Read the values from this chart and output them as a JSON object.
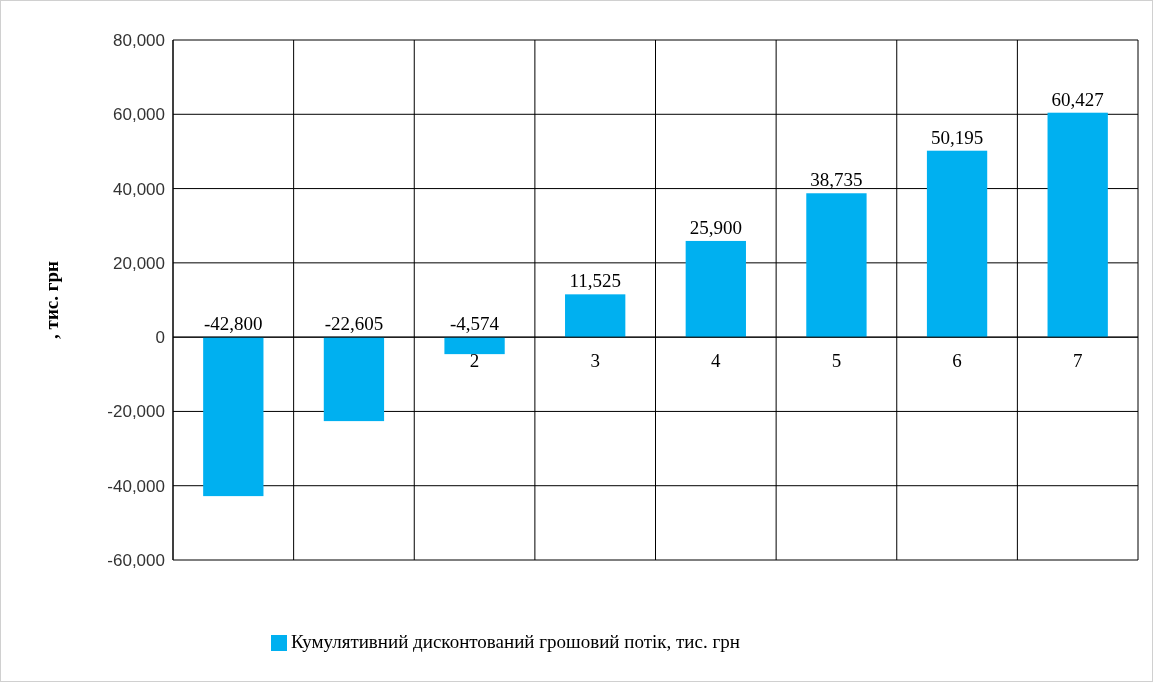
{
  "chart_data": {
    "type": "bar",
    "ylabel": ", тис. грн",
    "categories": [
      null,
      null,
      "2",
      "3",
      "4",
      "5",
      "6",
      "7"
    ],
    "series": [
      {
        "name": "Кумулятивний дисконтований грошовий потік, тис. грн",
        "color": "#00b0f0",
        "values": [
          -42800,
          -22605,
          -4574,
          11525,
          25900,
          38735,
          50195,
          60427
        ]
      }
    ],
    "value_labels": [
      "-42,800",
      "-22,605",
      "-4,574",
      "11,525",
      "25,900",
      "38,735",
      "50,195",
      "60,427"
    ],
    "ylim": [
      -60000,
      80000
    ],
    "yticks": [
      {
        "value": -60000,
        "label": "-60,000"
      },
      {
        "value": -40000,
        "label": "-40,000"
      },
      {
        "value": -20000,
        "label": "-20,000"
      },
      0,
      {
        "value": 20000,
        "label": "20,000"
      },
      {
        "value": 40000,
        "label": "40,000"
      },
      {
        "value": 60000,
        "label": "60,000"
      },
      {
        "value": 80000,
        "label": "80,000"
      }
    ],
    "grid": true,
    "legend": "bottom"
  }
}
